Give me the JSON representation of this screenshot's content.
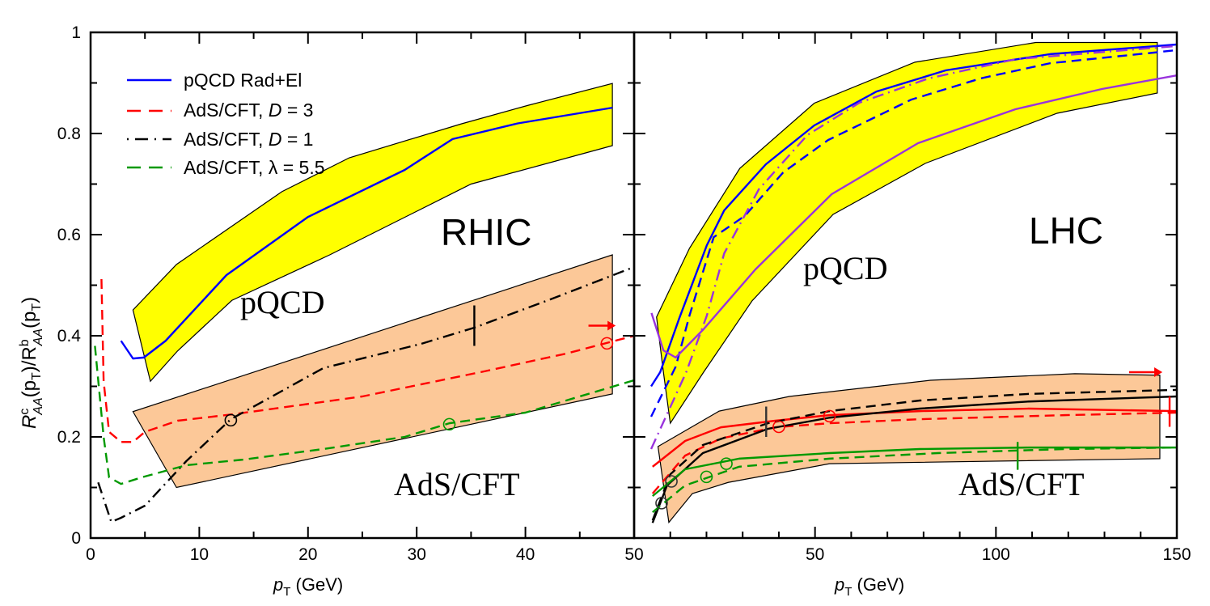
{
  "y_axis_label": {
    "base": "R",
    "sup1": "c",
    "sub1": "AA",
    "mid": "(p",
    "sub2": "T",
    "mid2": ")/R",
    "sup3": "b",
    "sub3": "AA",
    "mid3": "(p",
    "sub4": "T",
    "end": ")"
  },
  "x_axis_label": {
    "p": "p",
    "sub": "T",
    "unit": " (GeV)"
  },
  "legend": [
    {
      "prefix": "pQCD Rad+El",
      "sym": "",
      "suffix": "",
      "color": "#0000ff",
      "dash": "solid"
    },
    {
      "prefix": "AdS/CFT, ",
      "sym": "D",
      "suffix": " = 3",
      "color": "#ff0000",
      "dash": "dashed"
    },
    {
      "prefix": "AdS/CFT, ",
      "sym": "D",
      "suffix": " = 1",
      "color": "#000000",
      "dash": "dash-dot"
    },
    {
      "prefix": "AdS/CFT, ",
      "sym": "λ",
      "suffix": " = 5.5",
      "color": "#009900",
      "dash": "dashed"
    }
  ],
  "chart_data": [
    {
      "type": "line",
      "panel": "RHIC",
      "xlim": [
        0,
        50
      ],
      "ylim": [
        0,
        1
      ],
      "x_ticks": [
        "0",
        "10",
        "20",
        "30",
        "40",
        "50"
      ],
      "y_ticks": [
        "0",
        "0.2",
        "0.4",
        "0.6",
        "0.8",
        "1"
      ],
      "grid": false,
      "legend_position": "top-left",
      "labels": {
        "panel": "RHIC",
        "pqcd": "pQCD",
        "ads": "AdS/CFT"
      },
      "bands": [
        {
          "fill": "#ffff00",
          "upper": [
            [
              3.9,
              0.451
            ],
            [
              7.9,
              0.541
            ],
            [
              17.6,
              0.685
            ],
            [
              23.8,
              0.752
            ],
            [
              34.1,
              0.819
            ],
            [
              40.3,
              0.856
            ],
            [
              48,
              0.899
            ]
          ],
          "lower": [
            [
              5.5,
              0.31
            ],
            [
              8,
              0.37
            ],
            [
              13,
              0.47
            ],
            [
              22,
              0.56
            ],
            [
              35,
              0.7
            ],
            [
              48,
              0.776
            ]
          ]
        },
        {
          "fill": "#fcc898",
          "upper": [
            [
              3.9,
              0.25
            ],
            [
              48,
              0.56
            ]
          ],
          "lower": [
            [
              7.9,
              0.1
            ],
            [
              48,
              0.285
            ]
          ]
        }
      ],
      "series": [
        {
          "name": "pQCD Rad+El",
          "color": "#0000ff",
          "dash": "solid",
          "x": [
            2.8,
            3.9,
            4.9,
            6.9,
            12.5,
            20,
            28.9,
            33.3,
            39.3,
            48
          ],
          "y": [
            0.39,
            0.355,
            0.357,
            0.39,
            0.52,
            0.635,
            0.728,
            0.789,
            0.82,
            0.851
          ]
        },
        {
          "name": "AdS/CFT, D = 3",
          "color": "#ff0000",
          "dash": "dashed",
          "x": [
            1,
            1.2,
            1.7,
            2.8,
            3.9,
            5,
            8,
            13.2,
            25,
            36.3,
            43.8,
            50
          ],
          "y": [
            0.512,
            0.31,
            0.21,
            0.19,
            0.19,
            0.21,
            0.232,
            0.245,
            0.28,
            0.33,
            0.365,
            0.4
          ]
        },
        {
          "name": "AdS/CFT, D = 1",
          "color": "#000000",
          "dash": "dash-dot",
          "x": [
            0.7,
            1.9,
            2.8,
            5,
            8.8,
            12.9,
            21.4,
            30.4,
            35.3,
            42.3,
            50
          ],
          "y": [
            0.11,
            0.032,
            0.04,
            0.064,
            0.152,
            0.235,
            0.336,
            0.384,
            0.416,
            0.472,
            0.536
          ]
        },
        {
          "name": "AdS/CFT, λ = 5.5",
          "color": "#009900",
          "dash": "dashed",
          "x": [
            0.4,
            1.2,
            1.7,
            2.8,
            4.7,
            8.8,
            14,
            21.4,
            28.9,
            33,
            40,
            50
          ],
          "y": [
            0.38,
            0.2,
            0.12,
            0.107,
            0.12,
            0.144,
            0.155,
            0.176,
            0.2,
            0.227,
            0.248,
            0.312
          ]
        }
      ],
      "markers": [
        {
          "kind": "circle",
          "color": "#000000",
          "x": 12.9,
          "y": 0.233
        },
        {
          "kind": "circle",
          "color": "#009900",
          "x": 33,
          "y": 0.225
        },
        {
          "kind": "circle",
          "color": "#ff0000",
          "x": 47.5,
          "y": 0.385
        },
        {
          "kind": "vtick",
          "color": "#000000",
          "x": 35.3,
          "y": [
            0.38,
            0.46
          ]
        },
        {
          "kind": "arrow",
          "color": "#ff0000",
          "x": [
            45.8,
            48.3
          ],
          "y": 0.42
        }
      ]
    },
    {
      "type": "line",
      "panel": "LHC",
      "xlim": [
        0,
        150
      ],
      "ylim": [
        0,
        1
      ],
      "x_ticks": [
        "50",
        "100",
        "150"
      ],
      "y_ticks": [
        "0",
        "0.2",
        "0.4",
        "0.6",
        "0.8",
        "1"
      ],
      "grid": false,
      "labels": {
        "panel": "LHC",
        "pqcd": "pQCD",
        "ads": "AdS/CFT"
      },
      "bands": [
        {
          "fill": "#ffff00",
          "upper": [
            [
              6.2,
              0.437
            ],
            [
              15.3,
              0.573
            ],
            [
              29.2,
              0.731
            ],
            [
              49.8,
              0.86
            ],
            [
              77.6,
              0.941
            ],
            [
              111,
              0.98
            ],
            [
              144.6,
              0.98
            ]
          ],
          "lower": [
            [
              8.1,
              0.328
            ],
            [
              10,
              0.227
            ],
            [
              19.2,
              0.328
            ],
            [
              32.6,
              0.469
            ],
            [
              55,
              0.64
            ],
            [
              80.5,
              0.741
            ],
            [
              116.9,
              0.84
            ],
            [
              144.6,
              0.88
            ]
          ]
        },
        {
          "fill": "#fcc898",
          "upper": [
            [
              6.6,
              0.181
            ],
            [
              23.5,
              0.251
            ],
            [
              42.9,
              0.28
            ],
            [
              81.9,
              0.312
            ],
            [
              121.8,
              0.325
            ],
            [
              145.3,
              0.322
            ]
          ],
          "lower": [
            [
              9.6,
              0.031
            ],
            [
              16.1,
              0.088
            ],
            [
              26,
              0.11
            ],
            [
              54,
              0.147
            ],
            [
              145.3,
              0.157
            ]
          ]
        }
      ],
      "series": [
        {
          "color": "#0000ff",
          "dash": "solid",
          "x": [
            4.7,
            7.2,
            12.5,
            20.1,
            24.9,
            36.4,
            49.8,
            67,
            86.2,
            115,
            150
          ],
          "y": [
            0.3,
            0.328,
            0.435,
            0.579,
            0.648,
            0.739,
            0.816,
            0.883,
            0.925,
            0.957,
            0.976
          ]
        },
        {
          "color": "#0000ff",
          "dash": "dashed",
          "x": [
            4.7,
            11.5,
            15.3,
            22,
            30.6,
            41.2,
            53.6,
            76.6,
            95.8,
            115,
            143.7,
            150
          ],
          "y": [
            0.24,
            0.339,
            0.44,
            0.595,
            0.637,
            0.723,
            0.787,
            0.867,
            0.909,
            0.939,
            0.96,
            0.965
          ]
        },
        {
          "color": "#9933dd",
          "dash": "dash-dot",
          "x": [
            4.7,
            14.4,
            20.1,
            24.9,
            34.5,
            47.9,
            62.3,
            81.4,
            105.4,
            150
          ],
          "y": [
            0.176,
            0.328,
            0.44,
            0.563,
            0.69,
            0.797,
            0.861,
            0.909,
            0.947,
            0.973
          ]
        },
        {
          "color": "#9933dd",
          "dash": "solid",
          "x": [
            4.8,
            8.1,
            11.5,
            19.2,
            33.5,
            54.6,
            78.5,
            105.4,
            129.3,
            150
          ],
          "y": [
            0.445,
            0.371,
            0.357,
            0.413,
            0.531,
            0.68,
            0.781,
            0.848,
            0.888,
            0.915
          ]
        },
        {
          "color": "#ff0000",
          "dash": "solid",
          "x": [
            5.1,
            14.1,
            24,
            39,
            54,
            79,
            109,
            150
          ],
          "y": [
            0.141,
            0.192,
            0.219,
            0.232,
            0.243,
            0.251,
            0.256,
            0.251
          ]
        },
        {
          "color": "#ff0000",
          "dash": "dashed",
          "x": [
            5.1,
            14.1,
            24,
            39,
            54,
            79,
            119,
            150
          ],
          "y": [
            0.088,
            0.163,
            0.197,
            0.219,
            0.227,
            0.235,
            0.243,
            0.248
          ]
        },
        {
          "color": "#000000",
          "dash": "solid",
          "x": [
            5.1,
            9.1,
            19,
            37,
            54,
            79,
            109,
            150
          ],
          "y": [
            0.03,
            0.104,
            0.168,
            0.216,
            0.238,
            0.256,
            0.27,
            0.28
          ]
        },
        {
          "color": "#000000",
          "dash": "dashed",
          "x": [
            5.1,
            10,
            19,
            37,
            54,
            79,
            109,
            150
          ],
          "y": [
            0.035,
            0.126,
            0.184,
            0.227,
            0.251,
            0.272,
            0.285,
            0.293
          ]
        },
        {
          "color": "#009900",
          "dash": "solid",
          "x": [
            5.1,
            14.1,
            29,
            54,
            79,
            109,
            150
          ],
          "y": [
            0.083,
            0.136,
            0.157,
            0.168,
            0.176,
            0.179,
            0.179
          ]
        },
        {
          "color": "#009900",
          "dash": "dashed",
          "x": [
            5.1,
            14.1,
            29,
            54,
            84,
            119,
            150
          ],
          "y": [
            0.051,
            0.104,
            0.141,
            0.157,
            0.168,
            0.176,
            0.179
          ]
        }
      ],
      "markers": [
        {
          "kind": "circle",
          "color": "#333333",
          "x": 7.6,
          "y": 0.069
        },
        {
          "kind": "circle",
          "color": "#333333",
          "x": 10.3,
          "y": 0.112
        },
        {
          "kind": "circle",
          "color": "#009900",
          "x": 20,
          "y": 0.121
        },
        {
          "kind": "circle",
          "color": "#009900",
          "x": 25.5,
          "y": 0.147
        },
        {
          "kind": "circle",
          "color": "#ff0000",
          "x": 40,
          "y": 0.22
        },
        {
          "kind": "circle",
          "color": "#ff0000",
          "x": 54,
          "y": 0.241
        },
        {
          "kind": "vtick",
          "color": "#333333",
          "x": 36.5,
          "y": [
            0.2,
            0.26
          ]
        },
        {
          "kind": "vtick",
          "color": "#009900",
          "x": 106,
          "y": [
            0.135,
            0.19
          ]
        },
        {
          "kind": "vtick",
          "color": "#ff0000",
          "x": 148,
          "y": [
            0.22,
            0.28
          ]
        },
        {
          "kind": "arrow",
          "color": "#ff0000",
          "x": [
            136.8,
            146
          ],
          "y": 0.328
        }
      ]
    }
  ]
}
